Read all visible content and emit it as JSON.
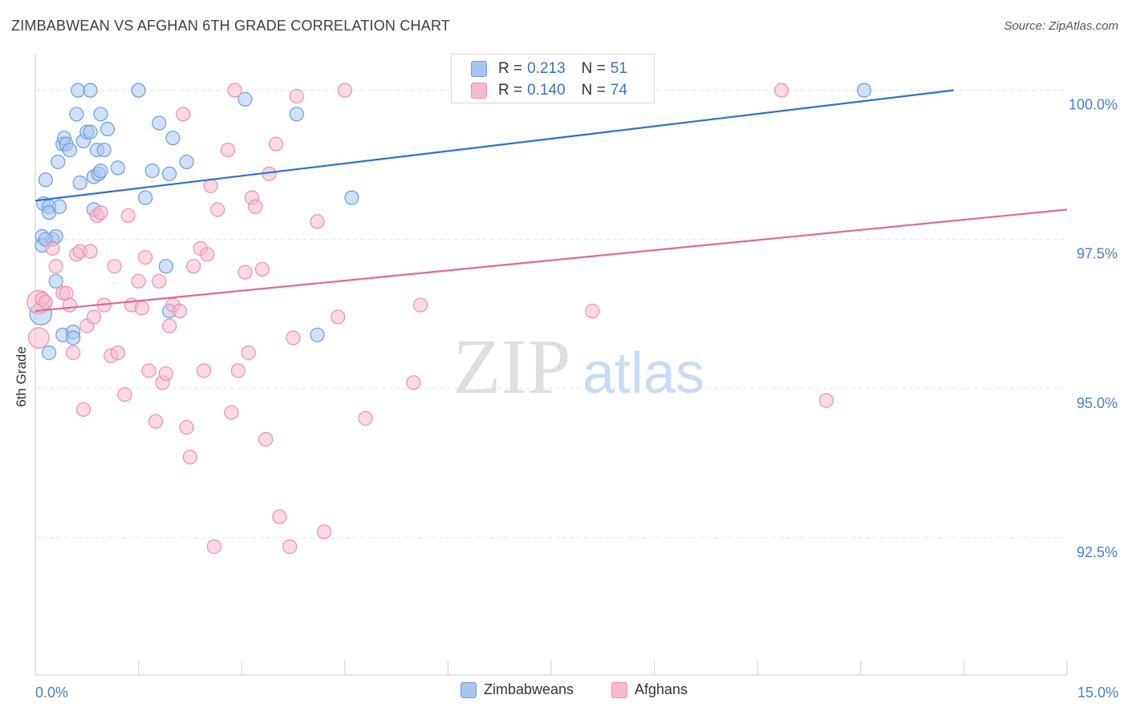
{
  "title": "ZIMBABWEAN VS AFGHAN 6TH GRADE CORRELATION CHART",
  "source": "Source: ZipAtlas.com",
  "watermark": {
    "zip": "ZIP",
    "atlas": "atlas"
  },
  "colors": {
    "blue_fill": "#a9c6f0",
    "blue_stroke": "#6e9be0",
    "blue_line": "#2f6fcf",
    "pink_fill": "#f7b9cc",
    "pink_stroke": "#ec8fae",
    "pink_line": "#e06a93",
    "tick_label": "#4a7fd0",
    "grid": "#e3e3e3"
  },
  "stats_legend": [
    {
      "r_label": "R =",
      "r_value": "0.213",
      "n_label": "N =",
      "n_value": "51",
      "color": "blue"
    },
    {
      "r_label": "R =",
      "r_value": "0.140",
      "n_label": "N =",
      "n_value": "74",
      "color": "pink"
    }
  ],
  "bottom_legend": [
    {
      "label": "Zimbabweans",
      "color": "blue"
    },
    {
      "label": "Afghans",
      "color": "pink"
    }
  ],
  "chart_data": {
    "type": "scatter",
    "title": "ZIMBABWEAN VS AFGHAN 6TH GRADE CORRELATION CHART",
    "xlabel": "",
    "ylabel": "6th Grade",
    "xlim": [
      0,
      15
    ],
    "ylim": [
      90.2,
      100.6
    ],
    "x_tick_labels": [
      {
        "value": 0,
        "label": "0.0%"
      },
      {
        "value": 15,
        "label": "15.0%"
      }
    ],
    "y_tick_labels": [
      {
        "value": 100,
        "label": "100.0%"
      },
      {
        "value": 97.5,
        "label": "97.5%"
      },
      {
        "value": 95,
        "label": "95.0%"
      },
      {
        "value": 92.5,
        "label": "92.5%"
      }
    ],
    "x_minor_ticks": [
      0,
      1.5,
      3,
      4.5,
      6,
      7.5,
      9,
      10.5,
      12,
      13.5,
      15
    ],
    "grid": true,
    "legend_position": "top-center",
    "series": [
      {
        "name": "Zimbabweans",
        "color": "blue",
        "trend": {
          "x": [
            0,
            13.35
          ],
          "y": [
            98.15,
            100.0
          ]
        },
        "points": [
          {
            "x": 0.08,
            "y": 96.25,
            "s": 1.6
          },
          {
            "x": 0.1,
            "y": 97.55
          },
          {
            "x": 0.1,
            "y": 97.4
          },
          {
            "x": 0.12,
            "y": 98.1
          },
          {
            "x": 0.15,
            "y": 98.5
          },
          {
            "x": 0.2,
            "y": 98.05
          },
          {
            "x": 0.2,
            "y": 97.95
          },
          {
            "x": 0.2,
            "y": 95.6
          },
          {
            "x": 0.25,
            "y": 97.5
          },
          {
            "x": 0.3,
            "y": 97.55
          },
          {
            "x": 0.3,
            "y": 96.8
          },
          {
            "x": 0.33,
            "y": 98.8
          },
          {
            "x": 0.35,
            "y": 98.05
          },
          {
            "x": 0.4,
            "y": 99.1
          },
          {
            "x": 0.4,
            "y": 95.9
          },
          {
            "x": 0.42,
            "y": 99.2
          },
          {
            "x": 0.45,
            "y": 99.1
          },
          {
            "x": 0.5,
            "y": 99.0
          },
          {
            "x": 0.55,
            "y": 95.95
          },
          {
            "x": 0.55,
            "y": 95.85
          },
          {
            "x": 0.6,
            "y": 99.6
          },
          {
            "x": 0.62,
            "y": 100.0
          },
          {
            "x": 0.65,
            "y": 98.45
          },
          {
            "x": 0.7,
            "y": 99.15
          },
          {
            "x": 0.75,
            "y": 99.3
          },
          {
            "x": 0.8,
            "y": 99.3
          },
          {
            "x": 0.8,
            "y": 100.0
          },
          {
            "x": 0.85,
            "y": 98.55
          },
          {
            "x": 0.85,
            "y": 98.0
          },
          {
            "x": 0.9,
            "y": 99.0
          },
          {
            "x": 0.92,
            "y": 98.6
          },
          {
            "x": 0.95,
            "y": 99.6
          },
          {
            "x": 0.95,
            "y": 98.65
          },
          {
            "x": 1.0,
            "y": 99.0
          },
          {
            "x": 1.05,
            "y": 99.35
          },
          {
            "x": 1.2,
            "y": 98.7
          },
          {
            "x": 1.5,
            "y": 100.0
          },
          {
            "x": 1.6,
            "y": 98.2
          },
          {
            "x": 1.7,
            "y": 98.65
          },
          {
            "x": 1.8,
            "y": 99.45
          },
          {
            "x": 1.9,
            "y": 97.05
          },
          {
            "x": 1.95,
            "y": 98.6
          },
          {
            "x": 1.95,
            "y": 96.3
          },
          {
            "x": 2.0,
            "y": 99.2
          },
          {
            "x": 2.2,
            "y": 98.8
          },
          {
            "x": 3.05,
            "y": 99.85
          },
          {
            "x": 3.8,
            "y": 99.6
          },
          {
            "x": 4.1,
            "y": 95.9
          },
          {
            "x": 4.6,
            "y": 98.2
          },
          {
            "x": 12.05,
            "y": 100.0
          },
          {
            "x": 0.15,
            "y": 97.5
          }
        ]
      },
      {
        "name": "Afghans",
        "color": "pink",
        "trend": {
          "x": [
            0,
            15
          ],
          "y": [
            96.3,
            98.0
          ]
        },
        "points": [
          {
            "x": 0.05,
            "y": 96.45,
            "s": 1.7
          },
          {
            "x": 0.05,
            "y": 95.85,
            "s": 1.5
          },
          {
            "x": 0.1,
            "y": 96.5
          },
          {
            "x": 0.15,
            "y": 96.45
          },
          {
            "x": 0.25,
            "y": 97.35
          },
          {
            "x": 0.3,
            "y": 97.05
          },
          {
            "x": 0.4,
            "y": 96.6
          },
          {
            "x": 0.45,
            "y": 96.6
          },
          {
            "x": 0.5,
            "y": 96.4
          },
          {
            "x": 0.55,
            "y": 95.6
          },
          {
            "x": 0.6,
            "y": 97.25
          },
          {
            "x": 0.65,
            "y": 97.3
          },
          {
            "x": 0.7,
            "y": 94.65
          },
          {
            "x": 0.75,
            "y": 96.05
          },
          {
            "x": 0.8,
            "y": 97.3
          },
          {
            "x": 0.85,
            "y": 96.2
          },
          {
            "x": 0.9,
            "y": 97.9
          },
          {
            "x": 0.95,
            "y": 97.95
          },
          {
            "x": 1.0,
            "y": 96.4
          },
          {
            "x": 1.1,
            "y": 95.55
          },
          {
            "x": 1.15,
            "y": 97.05
          },
          {
            "x": 1.2,
            "y": 95.6
          },
          {
            "x": 1.3,
            "y": 94.9
          },
          {
            "x": 1.35,
            "y": 97.9
          },
          {
            "x": 1.4,
            "y": 96.4
          },
          {
            "x": 1.5,
            "y": 96.8
          },
          {
            "x": 1.55,
            "y": 96.35
          },
          {
            "x": 1.6,
            "y": 97.2
          },
          {
            "x": 1.65,
            "y": 95.3
          },
          {
            "x": 1.75,
            "y": 94.45
          },
          {
            "x": 1.8,
            "y": 96.8
          },
          {
            "x": 1.85,
            "y": 95.1
          },
          {
            "x": 1.9,
            "y": 95.25
          },
          {
            "x": 1.95,
            "y": 96.05
          },
          {
            "x": 2.0,
            "y": 96.4
          },
          {
            "x": 2.1,
            "y": 96.3
          },
          {
            "x": 2.15,
            "y": 99.6
          },
          {
            "x": 2.2,
            "y": 94.35
          },
          {
            "x": 2.25,
            "y": 93.85
          },
          {
            "x": 2.3,
            "y": 97.05
          },
          {
            "x": 2.4,
            "y": 97.35
          },
          {
            "x": 2.45,
            "y": 95.3
          },
          {
            "x": 2.5,
            "y": 97.25
          },
          {
            "x": 2.55,
            "y": 98.4
          },
          {
            "x": 2.6,
            "y": 92.35
          },
          {
            "x": 2.65,
            "y": 98.0
          },
          {
            "x": 2.8,
            "y": 99.0
          },
          {
            "x": 2.85,
            "y": 94.6
          },
          {
            "x": 2.9,
            "y": 100.0
          },
          {
            "x": 2.95,
            "y": 95.3
          },
          {
            "x": 3.05,
            "y": 96.95
          },
          {
            "x": 3.1,
            "y": 95.6
          },
          {
            "x": 3.15,
            "y": 98.2
          },
          {
            "x": 3.2,
            "y": 98.05
          },
          {
            "x": 3.3,
            "y": 97.0
          },
          {
            "x": 3.35,
            "y": 94.15
          },
          {
            "x": 3.4,
            "y": 98.6
          },
          {
            "x": 3.5,
            "y": 99.1
          },
          {
            "x": 3.55,
            "y": 92.85
          },
          {
            "x": 3.7,
            "y": 92.35
          },
          {
            "x": 3.75,
            "y": 95.85
          },
          {
            "x": 3.8,
            "y": 99.9
          },
          {
            "x": 4.1,
            "y": 97.8
          },
          {
            "x": 4.2,
            "y": 92.6
          },
          {
            "x": 4.4,
            "y": 96.2
          },
          {
            "x": 4.5,
            "y": 100.0
          },
          {
            "x": 4.8,
            "y": 94.5
          },
          {
            "x": 5.5,
            "y": 95.1
          },
          {
            "x": 5.6,
            "y": 96.4
          },
          {
            "x": 6.9,
            "y": 100.0
          },
          {
            "x": 8.1,
            "y": 96.3
          },
          {
            "x": 8.8,
            "y": 100.0
          },
          {
            "x": 10.85,
            "y": 100.0
          },
          {
            "x": 11.5,
            "y": 94.8
          }
        ]
      }
    ]
  }
}
